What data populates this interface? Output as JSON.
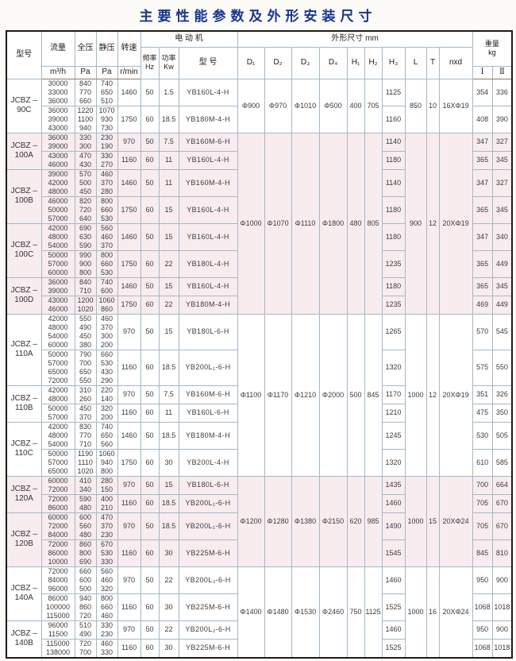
{
  "title": "主要性能参数及外形安装尺寸",
  "header": {
    "model": "型号",
    "flow": {
      "name": "流量",
      "unit": "m³/h"
    },
    "total_pressure": {
      "name": "全压",
      "unit": "Pa"
    },
    "static_pressure": {
      "name": "静压",
      "unit": "Pa"
    },
    "speed": {
      "name": "转速",
      "unit": "r/min"
    },
    "motor": {
      "title": "电 动 机",
      "freq_name": "频率",
      "freq_unit": "Hz",
      "power_name": "功率",
      "power_unit": "Kw",
      "model_label": "型 号"
    },
    "dims": {
      "title": "外形尺寸 mm",
      "cols": [
        "D₁",
        "D₂",
        "D₃",
        "D₄",
        "H₁",
        "H₂",
        "H₃",
        "L",
        "T",
        "nxd"
      ]
    },
    "weight": {
      "name": "重量",
      "unit": "kg",
      "col1": "Ⅰ",
      "col2": "Ⅱ"
    }
  },
  "groups": [
    {
      "tint": false,
      "dims": {
        "d1": "Φ900",
        "d2": "Φ970",
        "d3": "Φ1010",
        "d4": "Φ500",
        "h1": "400",
        "h2": "705",
        "l": "850",
        "t": "10",
        "nxd": "16XΦ19"
      },
      "models": [
        {
          "name": [
            "JCBZ –",
            "90C"
          ],
          "rows": [
            {
              "flow": [
                "30000",
                "33000",
                "36000"
              ],
              "tp": [
                "840",
                "770",
                "660"
              ],
              "sp": [
                "740",
                "650",
                "510"
              ],
              "speed": "1460",
              "freq": "50",
              "power": "1.5",
              "motor": "YB160L-4-H",
              "h3": "1125",
              "w1": "354",
              "w2": "336"
            },
            {
              "flow": [
                "36000",
                "39000",
                "43000"
              ],
              "tp": [
                "1220",
                "1100",
                "940"
              ],
              "sp": [
                "1070",
                "930",
                "730"
              ],
              "speed": "1750",
              "freq": "60",
              "power": "18.5",
              "motor": "YB180M-4-H",
              "h3": "1160",
              "w1": "408",
              "w2": "390"
            }
          ]
        }
      ]
    },
    {
      "tint": true,
      "dims": {
        "d1": "Φ1000",
        "d2": "Φ1070",
        "d3": "Φ1110",
        "d4": "Φ1800",
        "h1": "480",
        "h2": "805",
        "l": "900",
        "t": "12",
        "nxd": "20XΦ19"
      },
      "models": [
        {
          "name": [
            "JCBZ –",
            "100A"
          ],
          "rows": [
            {
              "flow": [
                "36000",
                "39000"
              ],
              "tp": [
                "330",
                "300"
              ],
              "sp": [
                "230",
                "190"
              ],
              "speed": "970",
              "freq": "50",
              "power": "7.5",
              "motor": "YB160M-6-H",
              "h3": "1140",
              "w1": "347",
              "w2": "327"
            },
            {
              "flow": [
                "43000",
                "46000"
              ],
              "tp": [
                "470",
                "430"
              ],
              "sp": [
                "330",
                "270"
              ],
              "speed": "1160",
              "freq": "60",
              "power": "11",
              "motor": "YB160L-4-H",
              "h3": "1180",
              "w1": "365",
              "w2": "345"
            }
          ]
        },
        {
          "name": [
            "JCBZ –",
            "100B"
          ],
          "rows": [
            {
              "flow": [
                "39000",
                "42000",
                "48000"
              ],
              "tp": [
                "570",
                "500",
                "450"
              ],
              "sp": [
                "460",
                "370",
                "280"
              ],
              "speed": "1460",
              "freq": "50",
              "power": "11",
              "motor": "YB160M-4-H",
              "h3": "1140",
              "w1": "347",
              "w2": "327"
            },
            {
              "flow": [
                "46000",
                "50000",
                "57000"
              ],
              "tp": [
                "820",
                "720",
                "640"
              ],
              "sp": [
                "800",
                "660",
                "530"
              ],
              "speed": "1750",
              "freq": "60",
              "power": "15",
              "motor": "YB160L-4-H",
              "h3": "1180",
              "w1": "365",
              "w2": "345"
            }
          ]
        },
        {
          "name": [
            "JCBZ –",
            "100C"
          ],
          "rows": [
            {
              "flow": [
                "42000",
                "48000",
                "54000"
              ],
              "tp": [
                "690",
                "630",
                "590"
              ],
              "sp": [
                "560",
                "460",
                "370"
              ],
              "speed": "1460",
              "freq": "50",
              "power": "15",
              "motor": "YB160L-4-H",
              "h3": "1180",
              "w1": "347",
              "w2": "340"
            },
            {
              "flow": [
                "50000",
                "57000",
                "60000"
              ],
              "tp": [
                "990",
                "900",
                "800"
              ],
              "sp": [
                "800",
                "660",
                "530"
              ],
              "speed": "1750",
              "freq": "60",
              "power": "22",
              "motor": "YB180L-4-H",
              "h3": "1235",
              "w1": "365",
              "w2": "449"
            }
          ]
        },
        {
          "name": [
            "JCBZ –",
            "100D"
          ],
          "rows": [
            {
              "flow": [
                "36000",
                "39000"
              ],
              "tp": [
                "840",
                "710"
              ],
              "sp": [
                "740",
                "600"
              ],
              "speed": "1460",
              "freq": "50",
              "power": "15",
              "motor": "YB160L-4-H",
              "h3": "1180",
              "w1": "365",
              "w2": "345"
            },
            {
              "flow": [
                "43000",
                "46000"
              ],
              "tp": [
                "1200",
                "1020"
              ],
              "sp": [
                "1060",
                "860"
              ],
              "speed": "1750",
              "freq": "60",
              "power": "22",
              "motor": "YB180M-4-H",
              "h3": "1235",
              "w1": "469",
              "w2": "449"
            }
          ]
        }
      ]
    },
    {
      "tint": false,
      "dims": {
        "d1": "Φ1100",
        "d2": "Φ1170",
        "d3": "Φ1210",
        "d4": "Φ2000",
        "h1": "500",
        "h2": "845",
        "l": "1000",
        "t": "12",
        "nxd": "20XΦ19"
      },
      "models": [
        {
          "name": [
            "JCBZ –",
            "110A"
          ],
          "rows": [
            {
              "flow": [
                "42000",
                "48000",
                "54000",
                "60000"
              ],
              "tp": [
                "550",
                "490",
                "450",
                "380"
              ],
              "sp": [
                "460",
                "370",
                "300",
                "200"
              ],
              "speed": "970",
              "freq": "50",
              "power": "15",
              "motor": "YB180L-6-H",
              "h3": "1265",
              "w1": "570",
              "w2": "545"
            },
            {
              "flow": [
                "50000",
                "57000",
                "65000",
                "72000"
              ],
              "tp": [
                "790",
                "700",
                "650",
                "550"
              ],
              "sp": [
                "660",
                "530",
                "430",
                "290"
              ],
              "speed": "1160",
              "freq": "60",
              "power": "18.5",
              "motor": "YB200L₁-6-H",
              "h3": "1320",
              "w1": "575",
              "w2": "550"
            }
          ]
        },
        {
          "name": [
            "JCBZ –",
            "110B"
          ],
          "rows": [
            {
              "flow": [
                "42000",
                "48000"
              ],
              "tp": [
                "310",
                "260"
              ],
              "sp": [
                "220",
                "140"
              ],
              "speed": "970",
              "freq": "50",
              "power": "7.5",
              "motor": "YB160M-6-H",
              "h3": "1170",
              "w1": "351",
              "w2": "326"
            },
            {
              "flow": [
                "50000",
                "57000"
              ],
              "tp": [
                "450",
                "370"
              ],
              "sp": [
                "320",
                "200"
              ],
              "speed": "1160",
              "freq": "60",
              "power": "11",
              "motor": "YB160L-6-H",
              "h3": "1210",
              "w1": "475",
              "w2": "350"
            }
          ]
        },
        {
          "name": [
            "JCBZ –",
            "110C"
          ],
          "rows": [
            {
              "flow": [
                "42000",
                "48000",
                "54000"
              ],
              "tp": [
                "830",
                "770",
                "710"
              ],
              "sp": [
                "740",
                "650",
                "560"
              ],
              "speed": "1460",
              "freq": "50",
              "power": "18.5",
              "motor": "YB180M-4-H",
              "h3": "1245",
              "w1": "530",
              "w2": "505"
            },
            {
              "flow": [
                "50000",
                "57000",
                "65000"
              ],
              "tp": [
                "1190",
                "1110",
                "1020"
              ],
              "sp": [
                "1060",
                "940",
                "800"
              ],
              "speed": "1750",
              "freq": "60",
              "power": "30",
              "motor": "YB200L-4-H",
              "h3": "1320",
              "w1": "610",
              "w2": "585"
            }
          ]
        }
      ]
    },
    {
      "tint": true,
      "dims": {
        "d1": "Φ1200",
        "d2": "Φ1280",
        "d3": "Φ1380",
        "d4": "Φ2150",
        "h1": "620",
        "h2": "985",
        "l": "1000",
        "t": "15",
        "nxd": "20XΦ24"
      },
      "models": [
        {
          "name": [
            "JCBZ –",
            "120A"
          ],
          "rows": [
            {
              "flow": [
                "60000",
                "72000"
              ],
              "tp": [
                "410",
                "340"
              ],
              "sp": [
                "280",
                "150"
              ],
              "speed": "970",
              "freq": "50",
              "power": "15",
              "motor": "YB180L-6-H",
              "h3": "1435",
              "w1": "700",
              "w2": "664"
            },
            {
              "flow": [
                "72000",
                "86000"
              ],
              "tp": [
                "590",
                "480"
              ],
              "sp": [
                "400",
                "210"
              ],
              "speed": "1160",
              "freq": "60",
              "power": "18.5",
              "motor": "YB200L₁-6-H",
              "h3": "1460",
              "w1": "705",
              "w2": "670"
            }
          ]
        },
        {
          "name": [
            "JCBZ –",
            "120B"
          ],
          "rows": [
            {
              "flow": [
                "60000",
                "72000",
                "84000"
              ],
              "tp": [
                "600",
                "560",
                "480"
              ],
              "sp": [
                "470",
                "370",
                "230"
              ],
              "speed": "970",
              "freq": "50",
              "power": "18.5",
              "motor": "YB200L₁-6-H",
              "h3": "1490",
              "w1": "705",
              "w2": "670"
            },
            {
              "flow": [
                "72000",
                "86000",
                "10000"
              ],
              "tp": [
                "860",
                "800",
                "690"
              ],
              "sp": [
                "670",
                "530",
                "330"
              ],
              "speed": "1160",
              "freq": "60",
              "power": "30",
              "motor": "YB225M-6-H",
              "h3": "1545",
              "w1": "845",
              "w2": "810"
            }
          ]
        }
      ]
    },
    {
      "tint": false,
      "dims": {
        "d1": "Φ1400",
        "d2": "Φ1480",
        "d3": "Φ1530",
        "d4": "Φ2460",
        "h1": "750",
        "h2": "1125",
        "l": "1000",
        "t": "16",
        "nxd": "20XΦ24"
      },
      "models": [
        {
          "name": [
            "JCBZ –",
            "140A"
          ],
          "rows": [
            {
              "flow": [
                "72000",
                "84000",
                "96000"
              ],
              "tp": [
                "660",
                "600",
                "500"
              ],
              "sp": [
                "560",
                "460",
                "320"
              ],
              "speed": "970",
              "freq": "50",
              "power": "22",
              "motor": "YB200L₂-6-H",
              "h3": "1460",
              "w1": "950",
              "w2": "900"
            },
            {
              "flow": [
                "86000",
                "100000",
                "115000"
              ],
              "tp": [
                "940",
                "860",
                "720"
              ],
              "sp": [
                "800",
                "660",
                "460"
              ],
              "speed": "1160",
              "freq": "60",
              "power": "30",
              "motor": "YB225M-6-H",
              "h3": "1525",
              "w1": "1068",
              "w2": "1018"
            }
          ]
        },
        {
          "name": [
            "JCBZ –",
            "140B"
          ],
          "rows": [
            {
              "flow": [
                "96000",
                "11500"
              ],
              "tp": [
                "510",
                "490"
              ],
              "sp": [
                "330",
                "230"
              ],
              "speed": "970",
              "freq": "50",
              "power": "22",
              "motor": "YB200L₂-6-H",
              "h3": "1460",
              "w1": "950",
              "w2": "900"
            },
            {
              "flow": [
                "115000",
                "138000"
              ],
              "tp": [
                "720",
                "700"
              ],
              "sp": [
                "460",
                "330"
              ],
              "speed": "1160",
              "freq": "60",
              "power": "30",
              "motor": "YB225M-6-H",
              "h3": "1525",
              "w1": "1068",
              "w2": "1018"
            }
          ]
        }
      ]
    }
  ]
}
